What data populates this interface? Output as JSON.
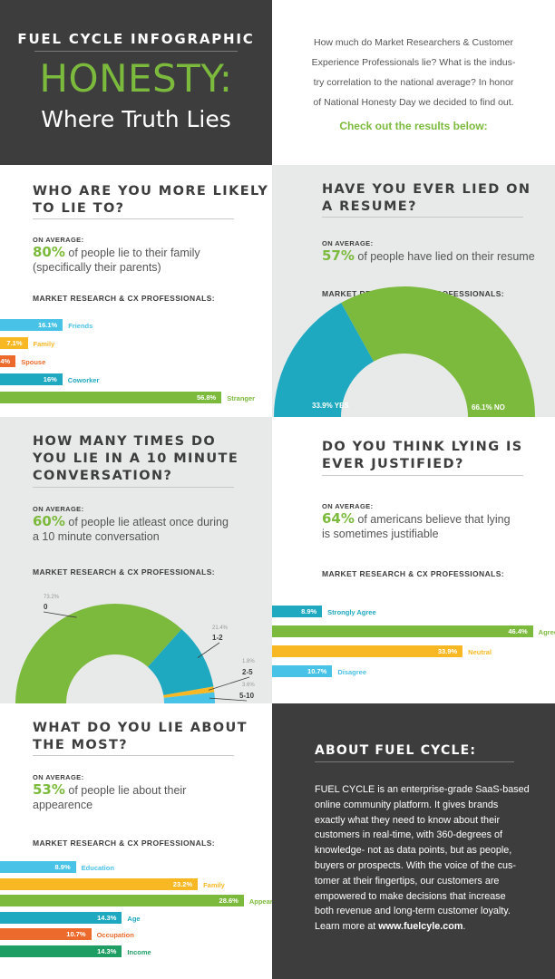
{
  "colors": {
    "green": "#7cba3d",
    "teal": "#1fa9c0",
    "yellow": "#f7b823",
    "orange": "#ec6b2c",
    "lightblue": "#48c2e6",
    "dark": "#3d3d3d",
    "darkgreen": "#1e9e63"
  },
  "header": {
    "kicker": "FUEL CYCLE INFOGRAPHIC",
    "title": "HONESTY:",
    "subtitle": "Where Truth Lies",
    "intro_lines": [
      "How much do Market Researchers & Customer",
      "Experience Professionals lie? What is the indus-",
      "try correlation to the national average? In honor",
      "of National Honesty Day we decided to find out."
    ],
    "cta": "Check out the results below:"
  },
  "labels": {
    "on_average": "ON AVERAGE:",
    "professionals": "MARKET RESEARCH & CX PROFESSIONALS:"
  },
  "q1": {
    "title_lines": [
      "WHO ARE YOU MORE LIKELY",
      "TO LIE TO?"
    ],
    "stat_value": "80%",
    "stat_lines": [
      " of people lie to their family",
      "(specifically their parents)"
    ]
  },
  "q2": {
    "title_lines": [
      "HAVE YOU EVER LIED ON",
      "A RESUME?"
    ],
    "stat_value": "57%",
    "stat_lines": [
      " of people have lied on their resume"
    ]
  },
  "q3": {
    "title_lines": [
      "HOW MANY TIMES DO",
      "YOU LIE IN A 10 MINUTE",
      "CONVERSATION?"
    ],
    "stat_value": "60%",
    "stat_lines": [
      " of people lie atleast once during",
      "a 10 minute conversation"
    ]
  },
  "q4": {
    "title_lines": [
      "DO YOU THINK LYING IS",
      "EVER JUSTIFIED?"
    ],
    "stat_value": "64%",
    "stat_lines": [
      " of americans believe that lying",
      "is sometimes justifiable"
    ]
  },
  "q5": {
    "title_lines": [
      "WHAT DO YOU LIE ABOUT",
      "THE MOST?"
    ],
    "stat_value": "53%",
    "stat_lines": [
      " of people lie about their",
      "appearence"
    ]
  },
  "about": {
    "title": "ABOUT FUEL CYCLE:",
    "lines": [
      "FUEL CYCLE is an enterprise-grade SaaS-based",
      "online community platform. It gives brands",
      "exactly what they need to know about their",
      "customers in real-time, with 360-degrees of",
      "knowledge- not as data points, but as people,",
      "buyers or prospects. With the voice of the cus-",
      "tomer at their fingertips, our customers are",
      "empowered to make decisions that increase",
      "both revenue and long-term customer loyalty."
    ],
    "learn_prefix": "Learn more at ",
    "learn_link": "www.fuelcyle.com",
    "learn_suffix": "."
  },
  "chart_data": [
    {
      "type": "bar",
      "categories": [
        "Friends",
        "Family",
        "Spouse",
        "Coworker",
        "Stranger"
      ],
      "values": [
        16.1,
        7.1,
        4,
        16,
        56.8
      ],
      "value_labels": [
        "16.1%",
        "7.1%",
        "4%",
        "16%",
        "56.8%"
      ],
      "colors": [
        "#48c2e6",
        "#f7b823",
        "#ec6b2c",
        "#1fa9c0",
        "#7cba3d"
      ]
    },
    {
      "type": "pie",
      "categories": [
        "YES",
        "NO"
      ],
      "values": [
        33.9,
        66.1
      ],
      "value_labels": [
        "33.9% YES",
        "66.1% NO"
      ],
      "colors": [
        "#1fa9c0",
        "#7cba3d"
      ]
    },
    {
      "type": "pie",
      "categories": [
        "0",
        "1-2",
        "2-5",
        "5-10"
      ],
      "values": [
        73.2,
        21.4,
        1.8,
        3.6
      ],
      "value_labels": [
        "73.2%",
        "21.4%",
        "1.8%",
        "3.6%"
      ],
      "colors": [
        "#7cba3d",
        "#1fa9c0",
        "#f7b823",
        "#48c2e6"
      ]
    },
    {
      "type": "bar",
      "categories": [
        "Strongly Agree",
        "Agree",
        "Neutral",
        "Disagree"
      ],
      "values": [
        8.9,
        46.4,
        33.9,
        10.7
      ],
      "value_labels": [
        "8.9%",
        "46.4%",
        "33.9%",
        "10.7%"
      ],
      "colors": [
        "#1fa9c0",
        "#7cba3d",
        "#f7b823",
        "#48c2e6"
      ]
    },
    {
      "type": "bar",
      "categories": [
        "Education",
        "Family",
        "Appearance",
        "Age",
        "Occupation",
        "Income"
      ],
      "values": [
        8.9,
        23.2,
        28.6,
        14.3,
        10.7,
        14.3
      ],
      "value_labels": [
        "8.9%",
        "23.2%",
        "28.6%",
        "14.3%",
        "10.7%",
        "14.3%"
      ],
      "colors": [
        "#48c2e6",
        "#f7b823",
        "#7cba3d",
        "#1fa9c0",
        "#ec6b2c",
        "#1e9e63"
      ]
    }
  ]
}
